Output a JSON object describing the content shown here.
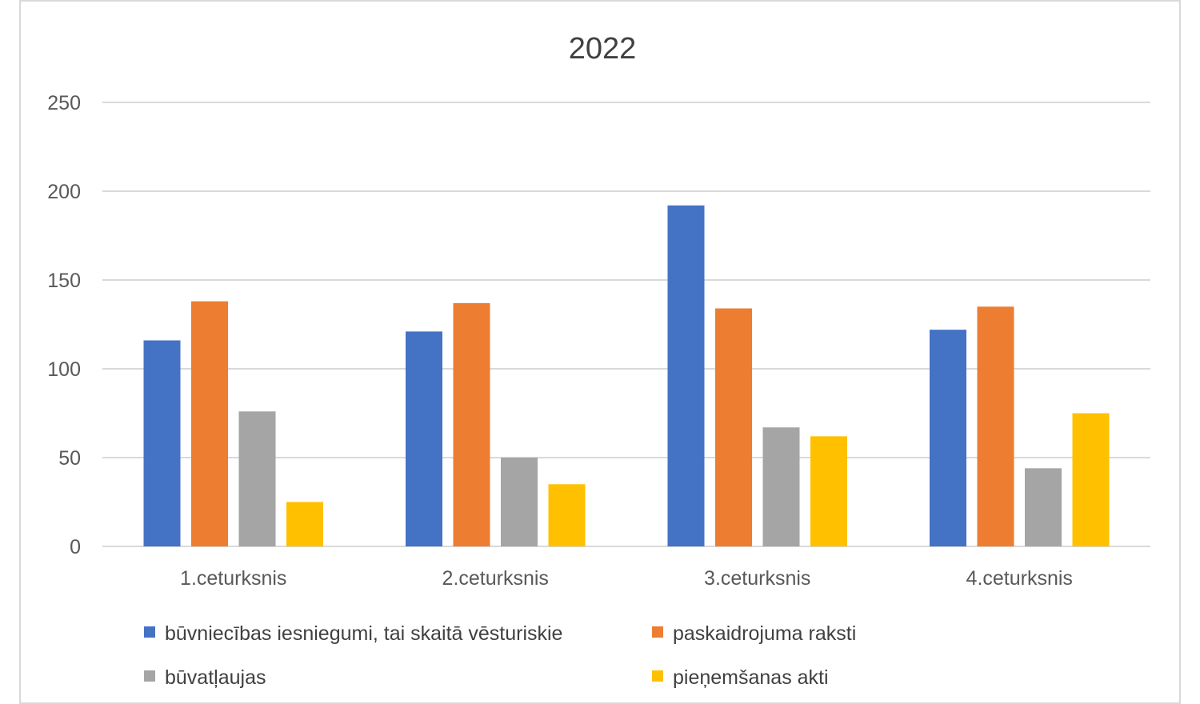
{
  "chart_data": {
    "type": "bar",
    "title": "2022",
    "xlabel": "",
    "ylabel": "",
    "ylim": [
      0,
      250
    ],
    "yticks": [
      0,
      50,
      100,
      150,
      200,
      250
    ],
    "grid": true,
    "legend_position": "bottom",
    "categories": [
      "1.ceturksnis",
      "2.ceturksnis",
      "3.ceturksnis",
      "4.ceturksnis"
    ],
    "series": [
      {
        "name": "būvniecības iesniegumi, tai skaitā vēsturiskie",
        "color": "#4472c4",
        "values": [
          116,
          121,
          192,
          122
        ]
      },
      {
        "name": "paskaidrojuma raksti",
        "color": "#ed7d31",
        "values": [
          138,
          137,
          134,
          135
        ]
      },
      {
        "name": "būvatļaujas",
        "color": "#a5a5a5",
        "values": [
          76,
          50,
          67,
          44
        ]
      },
      {
        "name": "pieņemšanas akti",
        "color": "#ffc000",
        "values": [
          25,
          35,
          62,
          75
        ]
      }
    ]
  }
}
